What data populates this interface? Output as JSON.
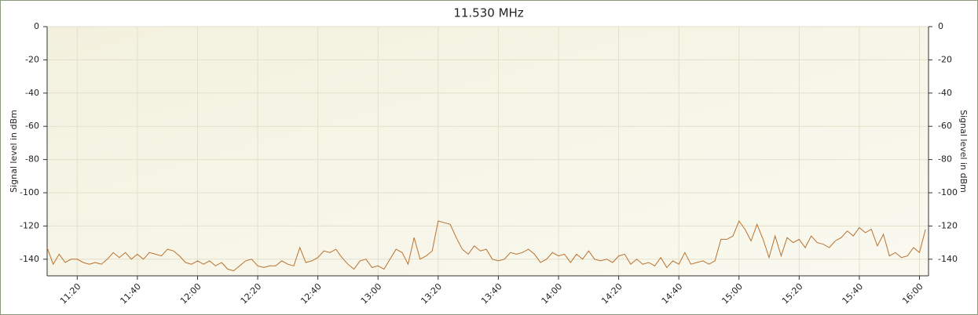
{
  "chart_data": {
    "type": "line",
    "title": "11.530 MHz",
    "y_label": "Signal level in dBm",
    "y2_label": "Signal level in dBm",
    "x": [
      "11:10",
      "11:12",
      "11:14",
      "11:16",
      "11:18",
      "11:20",
      "11:22",
      "11:24",
      "11:26",
      "11:28",
      "11:30",
      "11:32",
      "11:34",
      "11:36",
      "11:38",
      "11:40",
      "11:42",
      "11:44",
      "11:46",
      "11:48",
      "11:50",
      "11:52",
      "11:54",
      "11:56",
      "11:58",
      "12:00",
      "12:02",
      "12:04",
      "12:06",
      "12:08",
      "12:10",
      "12:12",
      "12:14",
      "12:16",
      "12:18",
      "12:20",
      "12:22",
      "12:24",
      "12:26",
      "12:28",
      "12:30",
      "12:32",
      "12:34",
      "12:36",
      "12:38",
      "12:40",
      "12:42",
      "12:44",
      "12:46",
      "12:48",
      "12:50",
      "12:52",
      "12:54",
      "12:56",
      "12:58",
      "13:00",
      "13:02",
      "13:04",
      "13:06",
      "13:08",
      "13:10",
      "13:12",
      "13:14",
      "13:16",
      "13:18",
      "13:20",
      "13:22",
      "13:24",
      "13:26",
      "13:28",
      "13:30",
      "13:32",
      "13:34",
      "13:36",
      "13:38",
      "13:40",
      "13:42",
      "13:44",
      "13:46",
      "13:48",
      "13:50",
      "13:52",
      "13:54",
      "13:56",
      "13:58",
      "14:00",
      "14:02",
      "14:04",
      "14:06",
      "14:08",
      "14:10",
      "14:12",
      "14:14",
      "14:16",
      "14:18",
      "14:20",
      "14:22",
      "14:24",
      "14:26",
      "14:28",
      "14:30",
      "14:32",
      "14:34",
      "14:36",
      "14:38",
      "14:40",
      "14:42",
      "14:44",
      "14:46",
      "14:48",
      "14:50",
      "14:52",
      "14:54",
      "14:56",
      "14:58",
      "15:00",
      "15:02",
      "15:04",
      "15:06",
      "15:08",
      "15:10",
      "15:12",
      "15:14",
      "15:16",
      "15:18",
      "15:20",
      "15:22",
      "15:24",
      "15:26",
      "15:28",
      "15:30",
      "15:32",
      "15:34",
      "15:36",
      "15:38",
      "15:40",
      "15:42",
      "15:44",
      "15:46",
      "15:48",
      "15:50",
      "15:52",
      "15:54",
      "15:56",
      "15:58",
      "16:00",
      "16:02"
    ],
    "values": [
      -133,
      -143,
      -137,
      -142,
      -140,
      -140,
      -142,
      -143,
      -142,
      -143,
      -140,
      -136,
      -139,
      -136,
      -140,
      -137,
      -140,
      -136,
      -137,
      -138,
      -134,
      -135,
      -138,
      -142,
      -143,
      -141,
      -143,
      -141,
      -144,
      -142,
      -146,
      -147,
      -144,
      -141,
      -140,
      -144,
      -145,
      -144,
      -144,
      -141,
      -143,
      -144,
      -133,
      -142,
      -141,
      -139,
      -135,
      -136,
      -134,
      -139,
      -143,
      -146,
      -141,
      -140,
      -145,
      -144,
      -146,
      -140,
      -134,
      -136,
      -143,
      -127,
      -140,
      -138,
      -135,
      -117,
      -118,
      -119,
      -127,
      -134,
      -137,
      -132,
      -135,
      -134,
      -140,
      -141,
      -140,
      -136,
      -137,
      -136,
      -134,
      -137,
      -142,
      -140,
      -136,
      -138,
      -137,
      -142,
      -137,
      -140,
      -135,
      -140,
      -141,
      -140,
      -142,
      -138,
      -137,
      -143,
      -140,
      -143,
      -142,
      -144,
      -139,
      -145,
      -141,
      -143,
      -136,
      -143,
      -142,
      -141,
      -143,
      -141,
      -128,
      -128,
      -126,
      -117,
      -122,
      -129,
      -119,
      -128,
      -139,
      -126,
      -138,
      -127,
      -130,
      -128,
      -133,
      -126,
      -130,
      -131,
      -133,
      -129,
      -127,
      -123,
      -126,
      -121,
      -124,
      -122,
      -132,
      -125,
      -138,
      -136,
      -139,
      -138,
      -133,
      -136,
      -122
    ],
    "color": "#b8712f",
    "xlim": [
      "11:10",
      "16:03"
    ],
    "xticks": [
      "11:20",
      "11:40",
      "12:00",
      "12:20",
      "12:40",
      "13:00",
      "13:20",
      "13:40",
      "14:00",
      "14:20",
      "14:40",
      "15:00",
      "15:20",
      "15:40",
      "16:00"
    ],
    "ylim": [
      -150,
      0
    ],
    "yticks": [
      0,
      -20,
      -40,
      -60,
      -80,
      -100,
      -120,
      -140
    ],
    "y2lim": [
      -150,
      0
    ],
    "y2ticks": [
      0,
      -20,
      -40,
      -60,
      -80,
      -100,
      -120,
      -140
    ],
    "grid": true
  }
}
